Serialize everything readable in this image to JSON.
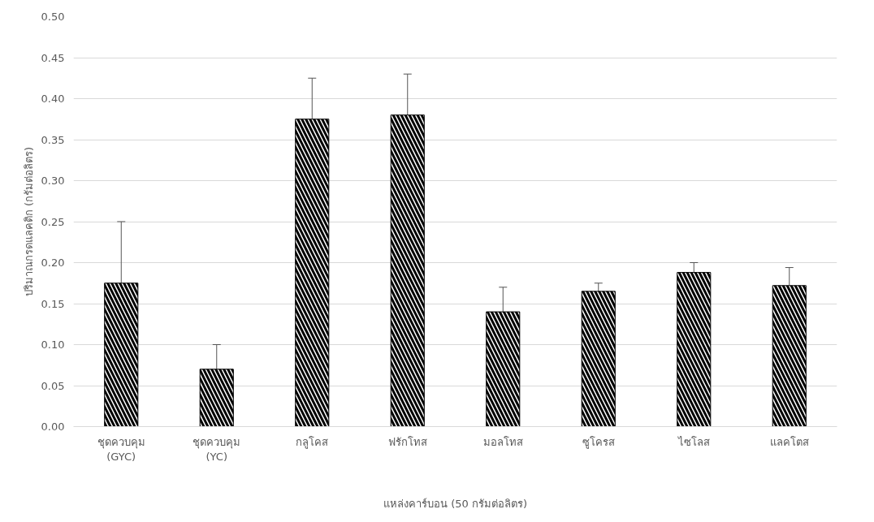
{
  "chart_data": {
    "type": "bar",
    "xlabel": "แหล่งคาร์บอน (50 กรัมต่อลิตร)",
    "ylabel": "ปริมาณกรดแลคติก (กรัมต่อลิตร)",
    "categories": [
      "ชุดควบคุม\n(GYC)",
      "ชุดควบคุม\n(YC)",
      "กลูโคส",
      "ฟรักโทส",
      "มอลโทส",
      "ซูโครส",
      "ไซโลส",
      "แลคโตส"
    ],
    "values": [
      0.175,
      0.07,
      0.375,
      0.38,
      0.14,
      0.165,
      0.188,
      0.172
    ],
    "errors": [
      0.075,
      0.03,
      0.05,
      0.05,
      0.03,
      0.01,
      0.012,
      0.022
    ],
    "color": "#000000",
    "ylim": [
      0,
      0.5
    ],
    "yticks": [
      {
        "value": 0,
        "label": "0.00"
      },
      {
        "value": 0.05,
        "label": "0.05"
      },
      {
        "value": 0.1,
        "label": "0.10"
      },
      {
        "value": 0.15,
        "label": "0.15"
      },
      {
        "value": 0.2,
        "label": "0.20"
      },
      {
        "value": 0.25,
        "label": "0.25"
      },
      {
        "value": 0.3,
        "label": "0.30"
      },
      {
        "value": 0.35,
        "label": "0.35"
      },
      {
        "value": 0.4,
        "label": "0.40"
      },
      {
        "value": 0.45,
        "label": "0.45"
      },
      {
        "value": 0.5,
        "label": "0.50"
      }
    ],
    "grid": "y"
  }
}
